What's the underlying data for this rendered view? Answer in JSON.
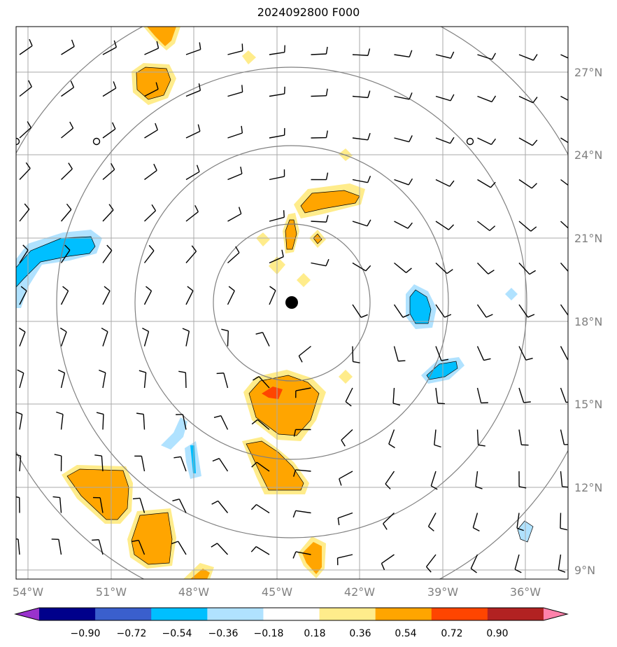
{
  "title": "2024092800 F000",
  "lon_labels": [
    "54°W",
    "51°W",
    "48°W",
    "45°W",
    "42°W",
    "39°W",
    "36°W"
  ],
  "lat_labels": [
    "27°N",
    "24°N",
    "21°N",
    "18°N",
    "15°N",
    "12°N",
    "9°N"
  ],
  "colorbar": {
    "tick_labels": [
      "−0.90",
      "−0.72",
      "−0.54",
      "−0.36",
      "−0.18",
      "0.18",
      "0.36",
      "0.54",
      "0.72",
      "0.90"
    ],
    "colors": [
      "#9932cc",
      "#00008b",
      "#3a5fcd",
      "#00bfff",
      "#b0e2ff",
      "#ffffff",
      "#ffec8b",
      "#ffa500",
      "#ff4500",
      "#b22222",
      "#ff82ab"
    ]
  },
  "colors": {
    "grid": "#aaaaaa",
    "range_rings": "#808080",
    "barbs": "#000000",
    "center_marker": "#000000",
    "axis_label_text": "#808080"
  }
}
